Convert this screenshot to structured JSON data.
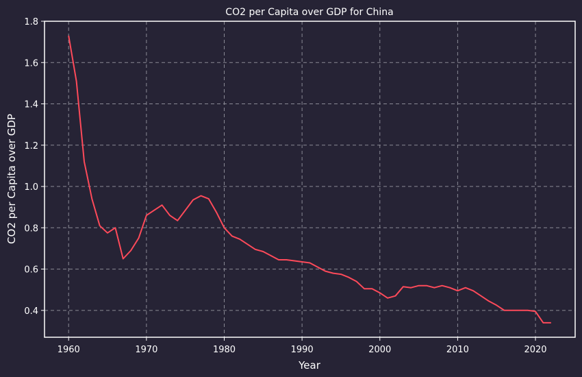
{
  "chart_data": {
    "type": "line",
    "title": "CO2 per Capita over GDP for China",
    "xlabel": "Year",
    "ylabel": "CO2 per Capita over GDP",
    "xlim": [
      1956.9,
      2025.1
    ],
    "ylim": [
      0.27,
      1.8
    ],
    "xticks": [
      1960,
      1970,
      1980,
      1990,
      2000,
      2010,
      2020
    ],
    "yticks": [
      0.4,
      0.6,
      0.8,
      1.0,
      1.2,
      1.4,
      1.6,
      1.8
    ],
    "ytick_labels": [
      "0.4",
      "0.6",
      "0.8",
      "1.0",
      "1.2",
      "1.4",
      "1.6",
      "1.8"
    ],
    "grid": true,
    "series": [
      {
        "color": "#fe4a5a",
        "x": [
          1960,
          1961,
          1962,
          1963,
          1964,
          1965,
          1966,
          1967,
          1968,
          1969,
          1970,
          1971,
          1972,
          1973,
          1974,
          1975,
          1976,
          1977,
          1978,
          1979,
          1980,
          1981,
          1982,
          1983,
          1984,
          1985,
          1986,
          1987,
          1988,
          1989,
          1990,
          1991,
          1992,
          1993,
          1994,
          1995,
          1996,
          1997,
          1998,
          1999,
          2000,
          2001,
          2002,
          2003,
          2004,
          2005,
          2006,
          2007,
          2008,
          2009,
          2010,
          2011,
          2012,
          2013,
          2014,
          2015,
          2016,
          2017,
          2018,
          2019,
          2020,
          2021,
          2022
        ],
        "y": [
          1.73,
          1.51,
          1.12,
          0.94,
          0.81,
          0.775,
          0.8,
          0.65,
          0.69,
          0.75,
          0.86,
          0.885,
          0.91,
          0.86,
          0.835,
          0.885,
          0.935,
          0.955,
          0.94,
          0.875,
          0.8,
          0.76,
          0.745,
          0.72,
          0.695,
          0.685,
          0.665,
          0.645,
          0.645,
          0.64,
          0.635,
          0.63,
          0.61,
          0.59,
          0.58,
          0.575,
          0.56,
          0.54,
          0.505,
          0.505,
          0.485,
          0.46,
          0.47,
          0.515,
          0.51,
          0.52,
          0.52,
          0.51,
          0.52,
          0.51,
          0.495,
          0.51,
          0.495,
          0.47,
          0.445,
          0.425,
          0.4,
          0.4,
          0.4,
          0.4,
          0.395,
          0.34,
          0.34
        ]
      }
    ]
  }
}
